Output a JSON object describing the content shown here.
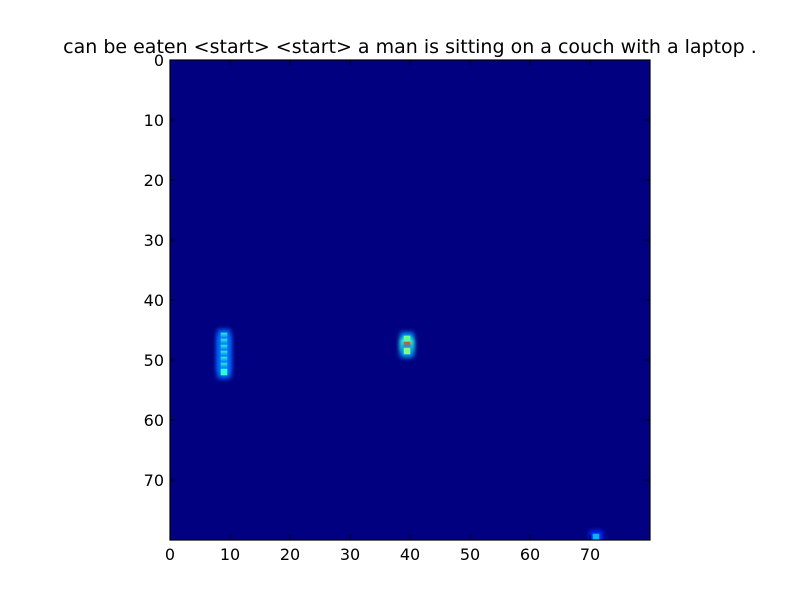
{
  "chart_data": {
    "type": "heatmap",
    "title": "can be eaten <start> <start> a man is sitting on a couch with a laptop .",
    "xlabel": "",
    "ylabel": "",
    "grid_size": [
      80,
      80
    ],
    "xlim": [
      0,
      80
    ],
    "ylim": [
      80,
      0
    ],
    "x_ticks": [
      "0",
      "10",
      "20",
      "30",
      "40",
      "50",
      "60",
      "70"
    ],
    "y_ticks": [
      "0",
      "10",
      "20",
      "30",
      "40",
      "50",
      "60",
      "70"
    ],
    "grid": false,
    "colormap": "jet",
    "background_color": "#000080",
    "hotspots": [
      {
        "x": 9,
        "y": 46,
        "value": 0.42
      },
      {
        "x": 9,
        "y": 47,
        "value": 0.42
      },
      {
        "x": 9,
        "y": 48,
        "value": 0.42
      },
      {
        "x": 9,
        "y": 49,
        "value": 0.42
      },
      {
        "x": 9,
        "y": 50,
        "value": 0.42
      },
      {
        "x": 9,
        "y": 51,
        "value": 0.42
      },
      {
        "x": 9,
        "y": 52,
        "value": 0.42
      },
      {
        "x": 39.5,
        "y": 46.5,
        "value": 0.5
      },
      {
        "x": 39.5,
        "y": 47.5,
        "value": 0.8
      },
      {
        "x": 39.5,
        "y": 48.5,
        "value": 0.5
      },
      {
        "x": 71,
        "y": 79.5,
        "value": 0.3
      }
    ]
  }
}
